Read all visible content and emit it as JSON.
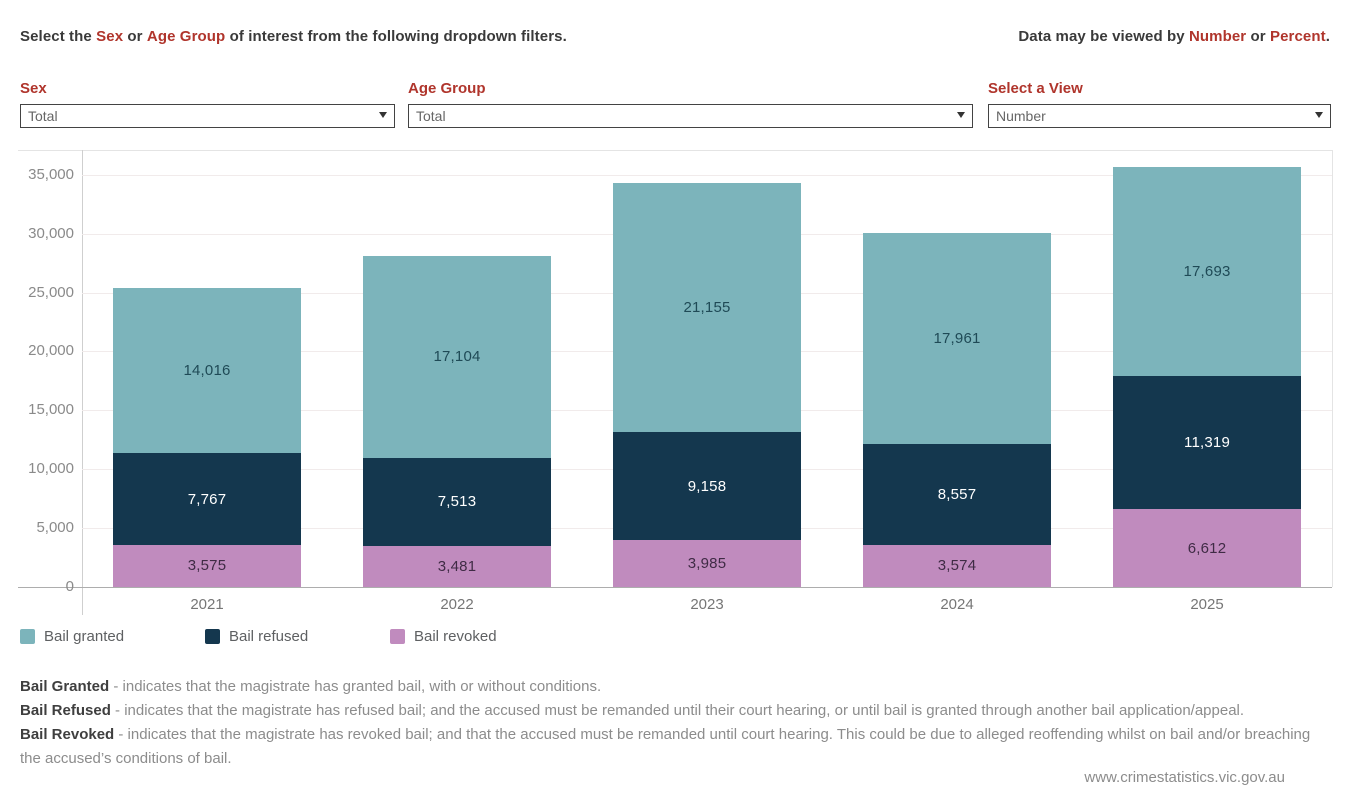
{
  "header": {
    "left_parts": [
      {
        "text": "Select the "
      },
      {
        "text": "Sex",
        "em": true
      },
      {
        "text": " or "
      },
      {
        "text": "Age Group",
        "em": true
      },
      {
        "text": " of interest from the following dropdown filters."
      }
    ],
    "right_parts": [
      {
        "text": "Data may be viewed by "
      },
      {
        "text": "Number",
        "em": true
      },
      {
        "text": " or "
      },
      {
        "text": "Percent",
        "em": true
      },
      {
        "text": "."
      }
    ]
  },
  "filters": {
    "sex": {
      "label": "Sex",
      "value": "Total"
    },
    "age_group": {
      "label": "Age Group",
      "value": "Total"
    },
    "view": {
      "label": "Select a View",
      "value": "Number"
    }
  },
  "chart_data": {
    "type": "bar",
    "stacked": true,
    "categories": [
      "2021",
      "2022",
      "2023",
      "2024",
      "2025"
    ],
    "series": [
      {
        "name": "Bail granted",
        "color": "#7CB4BB",
        "label_color": "#1F4A56",
        "values": [
          14016,
          17104,
          21155,
          17961,
          17693
        ]
      },
      {
        "name": "Bail refused",
        "color": "#14374E",
        "label_color": "#FFFFFF",
        "values": [
          7767,
          7513,
          9158,
          8557,
          11319
        ]
      },
      {
        "name": "Bail revoked",
        "color": "#C08BBE",
        "label_color": "#3F2B45",
        "values": [
          3575,
          3481,
          3985,
          3574,
          6612
        ]
      }
    ],
    "stack_order_bottom_to_top": [
      "Bail revoked",
      "Bail refused",
      "Bail granted"
    ],
    "totals": [
      25358,
      28098,
      34298,
      30092,
      35624
    ],
    "xlabel": "",
    "ylabel": "",
    "ylim": [
      0,
      37100
    ],
    "yticks": [
      0,
      5000,
      10000,
      15000,
      20000,
      25000,
      30000,
      35000
    ],
    "grid": true,
    "legend_position": "bottom-left",
    "accent_red": "#B0352C"
  },
  "footer": {
    "definitions": [
      {
        "term": "Bail Granted",
        "text": " - indicates that the magistrate has granted bail, with or without conditions."
      },
      {
        "term": "Bail Refused",
        "text": " - indicates that the magistrate has refused bail; and the accused must be remanded until their court hearing, or until bail is granted through another bail application/appeal."
      },
      {
        "term": "Bail Revoked",
        "text": " - indicates that the magistrate has revoked bail; and that the accused must be remanded until court hearing. This could be due to alleged reoffending whilst on bail and/or breaching the accused’s conditions of bail."
      }
    ],
    "website": "www.crimestatistics.vic.gov.au"
  }
}
